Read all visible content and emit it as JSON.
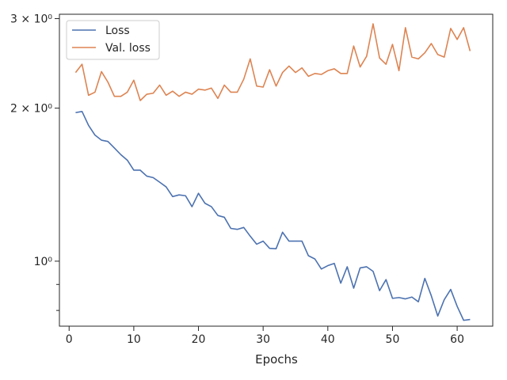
{
  "chart_data": {
    "type": "line",
    "xlabel": "Epochs",
    "ylabel": "",
    "yscale": "log",
    "xlim": [
      -1.5,
      65.5
    ],
    "ylim": [
      0.745,
      3.06
    ],
    "xticks": [
      0,
      10,
      20,
      30,
      40,
      50,
      60
    ],
    "yticks": [
      {
        "value": 1,
        "label": "10⁰"
      },
      {
        "value": 2,
        "label": "2 × 10⁰"
      },
      {
        "value": 3,
        "label": "3 × 10⁰"
      }
    ],
    "legend_position": "top-left",
    "grid": false,
    "x": [
      1,
      2,
      3,
      4,
      5,
      6,
      7,
      8,
      9,
      10,
      11,
      12,
      13,
      14,
      15,
      16,
      17,
      18,
      19,
      20,
      21,
      22,
      23,
      24,
      25,
      26,
      27,
      28,
      29,
      30,
      31,
      32,
      33,
      34,
      35,
      36,
      37,
      38,
      39,
      40,
      41,
      42,
      43,
      44,
      45,
      46,
      47,
      48,
      49,
      50,
      51,
      52,
      53,
      54,
      55,
      56,
      57,
      58,
      59,
      60,
      61,
      62
    ],
    "series": [
      {
        "name": "Loss",
        "color": "#4c72b0",
        "values": [
          1.96,
          1.97,
          1.85,
          1.77,
          1.73,
          1.72,
          1.67,
          1.62,
          1.58,
          1.51,
          1.51,
          1.47,
          1.46,
          1.43,
          1.4,
          1.34,
          1.35,
          1.345,
          1.28,
          1.36,
          1.3,
          1.28,
          1.23,
          1.22,
          1.16,
          1.155,
          1.165,
          1.12,
          1.08,
          1.095,
          1.06,
          1.058,
          1.14,
          1.095,
          1.095,
          1.095,
          1.025,
          1.01,
          0.965,
          0.98,
          0.99,
          0.905,
          0.975,
          0.885,
          0.97,
          0.975,
          0.955,
          0.875,
          0.92,
          0.845,
          0.848,
          0.843,
          0.85,
          0.832,
          0.925,
          0.855,
          0.78,
          0.84,
          0.88,
          0.815,
          0.765,
          0.768
        ]
      },
      {
        "name": "Val. loss",
        "color": "#dd8452",
        "values": [
          2.35,
          2.44,
          2.12,
          2.15,
          2.36,
          2.25,
          2.11,
          2.11,
          2.15,
          2.27,
          2.07,
          2.13,
          2.14,
          2.22,
          2.12,
          2.16,
          2.11,
          2.15,
          2.13,
          2.18,
          2.17,
          2.19,
          2.09,
          2.22,
          2.15,
          2.15,
          2.28,
          2.5,
          2.21,
          2.2,
          2.38,
          2.21,
          2.35,
          2.42,
          2.35,
          2.4,
          2.31,
          2.34,
          2.33,
          2.37,
          2.39,
          2.34,
          2.34,
          2.65,
          2.41,
          2.53,
          2.93,
          2.51,
          2.44,
          2.67,
          2.37,
          2.88,
          2.52,
          2.5,
          2.57,
          2.68,
          2.55,
          2.52,
          2.87,
          2.73,
          2.88,
          2.59
        ]
      }
    ]
  }
}
